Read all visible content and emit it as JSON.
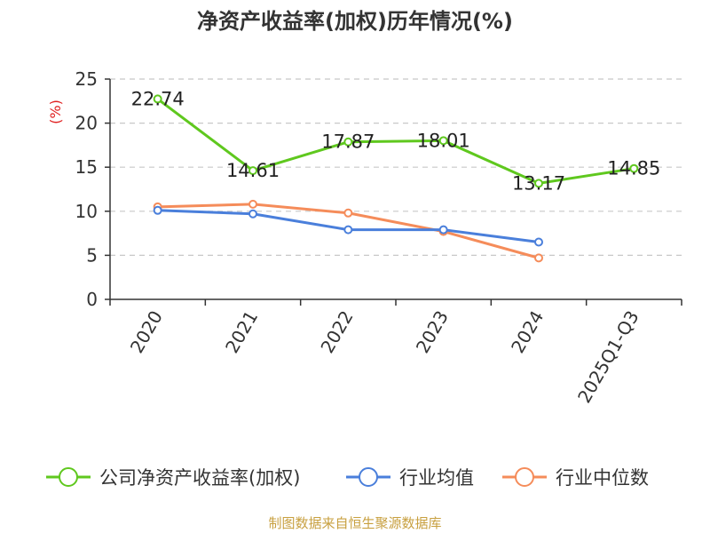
{
  "chart_data": {
    "type": "line",
    "title": "净资产收益率(加权)历年情况(%)",
    "ylabel": "(%)",
    "xlabel": "",
    "categories": [
      "2020",
      "2021",
      "2022",
      "2023",
      "2024",
      "2025Q1-Q3"
    ],
    "ylim": [
      0,
      25
    ],
    "yticks": [
      0,
      5,
      10,
      15,
      20,
      25
    ],
    "grid": true,
    "legend_position": "bottom",
    "series": [
      {
        "name": "公司净资产收益率(加权)",
        "color": "#5fc81e",
        "values": [
          22.74,
          14.61,
          17.87,
          18.01,
          13.17,
          14.85
        ],
        "labels": [
          "22.74",
          "14.61",
          "17.87",
          "18.01",
          "13.17",
          "14.85"
        ]
      },
      {
        "name": "行业均值",
        "color": "#4a7fdb",
        "values": [
          10.1,
          9.7,
          7.9,
          7.9,
          6.5,
          null
        ]
      },
      {
        "name": "行业中位数",
        "color": "#f58c5a",
        "values": [
          10.5,
          10.8,
          9.8,
          7.7,
          4.7,
          null
        ]
      }
    ],
    "source": "制图数据来自恒生聚源数据库"
  }
}
